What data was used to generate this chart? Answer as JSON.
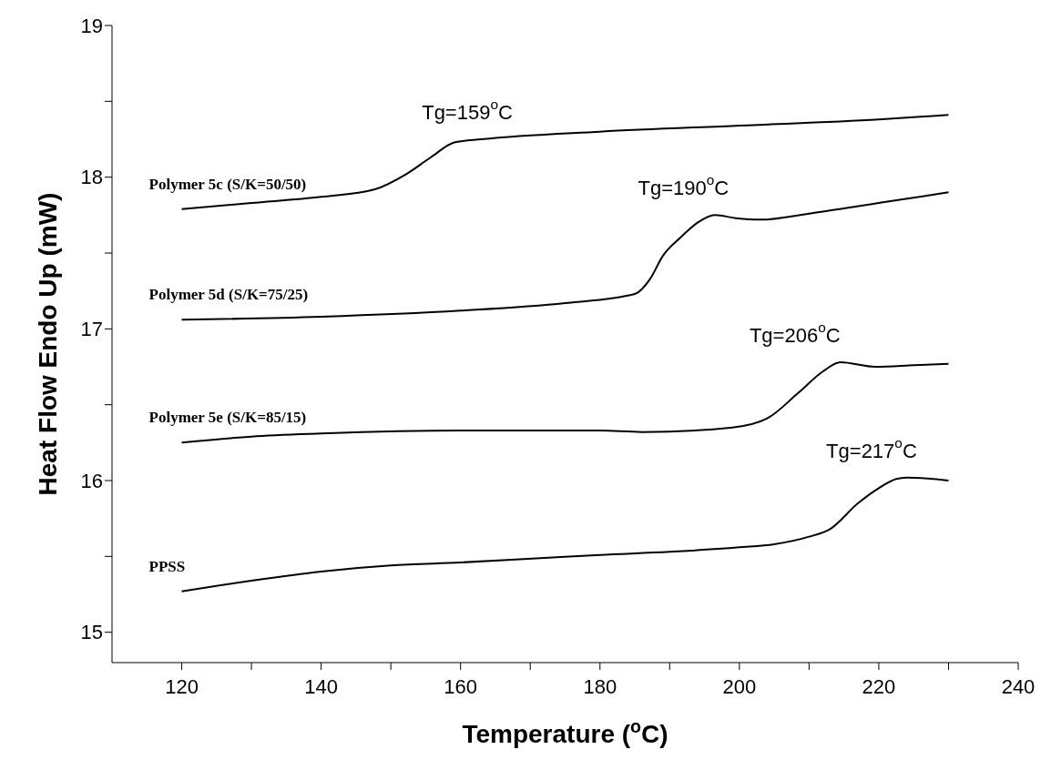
{
  "chart_data": {
    "type": "line",
    "xlabel": "Temperature ($^{o}$C)",
    "ylabel": "Heat Flow Endo Up (mW)",
    "xlim": [
      110,
      240
    ],
    "xticks": [
      120,
      {
        "value": 130,
        "label": null
      },
      140,
      {
        "value": 150,
        "label": null
      },
      160,
      {
        "value": 170,
        "label": null
      },
      180,
      {
        "value": 190,
        "label": null
      },
      200,
      {
        "value": 210,
        "label": null
      },
      220,
      {
        "value": 230,
        "label": null
      },
      240
    ],
    "ylim": [
      14.8,
      19
    ],
    "yticks": [
      15,
      {
        "value": 15.5,
        "label": null
      },
      16,
      {
        "value": 16.5,
        "label": null
      },
      17,
      {
        "value": 17.5,
        "label": null
      },
      18,
      {
        "value": 18.5,
        "label": null
      },
      19
    ],
    "marker": "none",
    "line_style": "solid",
    "series": [
      {
        "name": "Polymer 5c  (S/K=50/50)",
        "color": "#000000",
        "x": [
          120,
          130,
          140,
          147.7,
          152.2,
          155.7,
          159.2,
          163,
          180,
          200,
          220,
          230
        ],
        "values": [
          17.79,
          17.83,
          17.87,
          17.92,
          18.02,
          18.13,
          18.23,
          18.25,
          18.3,
          18.34,
          18.38,
          18.41
        ]
      },
      {
        "name": "Polymer 5d  (S/K=75/25)",
        "color": "#000000",
        "x": [
          120,
          140,
          160,
          175,
          185,
          187.2,
          189,
          191.5,
          194,
          196.5,
          199.5,
          203,
          210,
          220,
          230
        ],
        "values": [
          17.06,
          17.08,
          17.12,
          17.17,
          17.23,
          17.33,
          17.48,
          17.6,
          17.7,
          17.75,
          17.73,
          17.72,
          17.76,
          17.83,
          17.9
        ]
      },
      {
        "name": "Polymer 5e  (S/K=85/15)",
        "color": "#000000",
        "x": [
          120,
          130,
          140,
          160,
          180,
          186,
          199,
          204,
          208.5,
          212,
          214.5,
          219.5,
          225,
          230
        ],
        "values": [
          16.25,
          16.29,
          16.31,
          16.33,
          16.33,
          16.32,
          16.35,
          16.41,
          16.58,
          16.72,
          16.78,
          16.75,
          16.76,
          16.77
        ]
      },
      {
        "name": "PPSS",
        "color": "#000000",
        "x": [
          120,
          130,
          140,
          150,
          160,
          172,
          180,
          190,
          200,
          205,
          210,
          213,
          217,
          220,
          222.5,
          224,
          230
        ],
        "values": [
          15.27,
          15.34,
          15.4,
          15.44,
          15.46,
          15.49,
          15.51,
          15.53,
          15.56,
          15.58,
          15.63,
          15.68,
          15.85,
          15.95,
          16.01,
          16.02,
          16.0
        ]
      }
    ],
    "annotations": [
      {
        "text": "Tg=159$^{o}$C",
        "x": 159,
        "y": 18.22
      },
      {
        "text": "Tg=190$^{o}$C",
        "x": 190,
        "y": 17.53
      },
      {
        "text": "Tg=206$^{o}$C",
        "x": 206,
        "y": 16.49
      },
      {
        "text": "Tg=217$^{o}$C",
        "x": 217,
        "y": 15.85
      }
    ]
  }
}
